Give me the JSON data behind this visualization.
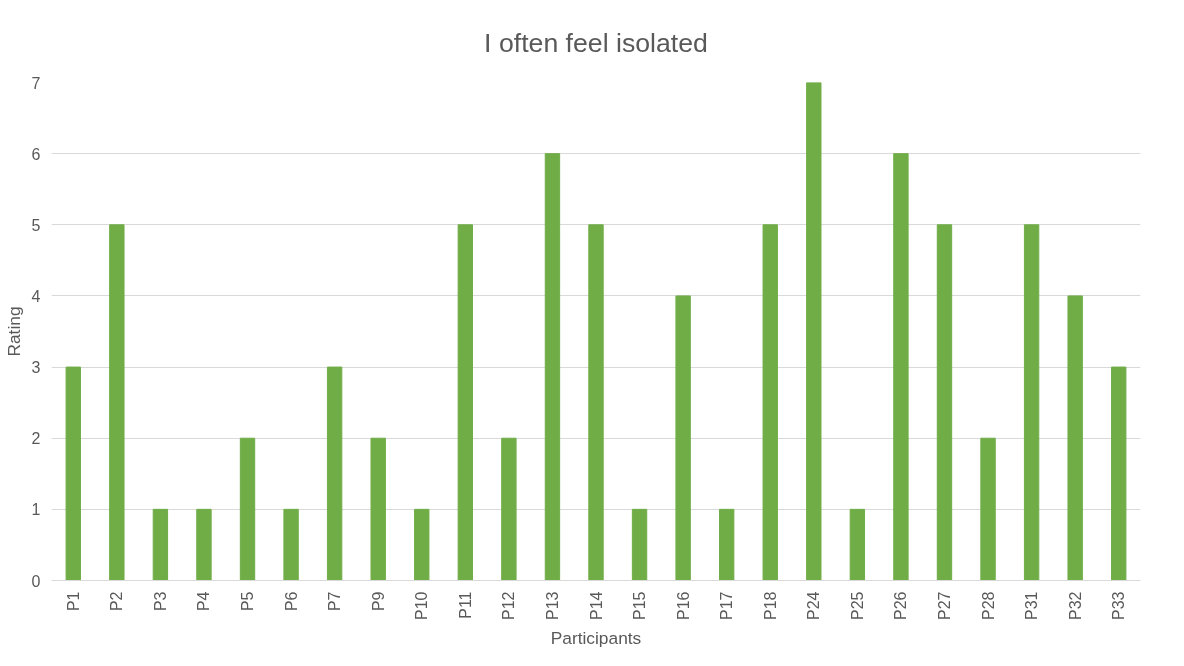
{
  "chart_data": {
    "type": "bar",
    "title": "I often feel isolated",
    "xlabel": "Participants",
    "ylabel": "Rating",
    "categories": [
      "P1",
      "P2",
      "P3",
      "P4",
      "P5",
      "P6",
      "P7",
      "P9",
      "P10",
      "P11",
      "P12",
      "P13",
      "P14",
      "P15",
      "P16",
      "P17",
      "P18",
      "P24",
      "P25",
      "P26",
      "P27",
      "P28",
      "P31",
      "P32",
      "P33"
    ],
    "values": [
      3,
      5,
      1,
      1,
      2,
      1,
      3,
      2,
      1,
      5,
      2,
      6,
      5,
      1,
      4,
      1,
      5,
      7,
      1,
      6,
      5,
      2,
      5,
      4,
      3
    ],
    "color": "#70ad47",
    "ylim": [
      0,
      7
    ],
    "yticks": [
      0,
      1,
      2,
      3,
      4,
      5,
      6,
      7
    ],
    "grid": "y"
  }
}
